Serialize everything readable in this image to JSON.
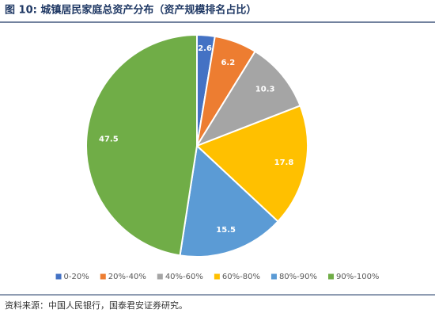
{
  "chart_data": {
    "type": "pie",
    "title": "图 10:  城镇居民家庭总资产分布（资产规模排名占比）",
    "categories": [
      "0-20%",
      "20%-40%",
      "40%-60%",
      "60%-80%",
      "80%-90%",
      "90%-100%"
    ],
    "values": [
      2.6,
      6.2,
      10.3,
      17.8,
      15.5,
      47.5
    ],
    "colors": [
      "#4472c4",
      "#ed7d31",
      "#a5a5a5",
      "#ffc000",
      "#5b9bd5",
      "#70ad47"
    ],
    "legend": "bottom",
    "source": "资料来源：中国人民银行，国泰君安证券研究。"
  }
}
